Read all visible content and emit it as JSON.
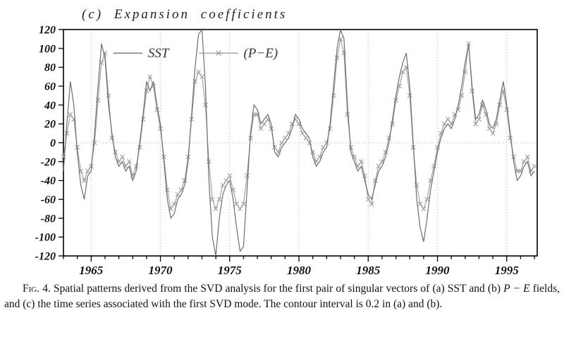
{
  "figure": {
    "title": "(c) Expansion coefficients",
    "caption": {
      "lead": "Fig. 4.",
      "part1": " Spatial patterns derived from the SVD analysis for the first pair of singular vectors of (a) SST and (b) ",
      "part2_italic": "P − E",
      "part3": " fields, and (c) the time series associated with the first SVD mode. The contour interval is 0.2 in (a) and (b)."
    }
  },
  "chart_data": {
    "type": "line",
    "title": "(c) Expansion coefficients",
    "xlabel": "",
    "ylabel": "",
    "xlim": [
      1963,
      1997.2
    ],
    "ylim": [
      -120,
      120
    ],
    "y_tick_step": 20,
    "y_tick_labels": [
      "-120",
      "-100",
      "-80",
      "-60",
      "-40",
      "-20",
      "0",
      "20",
      "40",
      "60",
      "80",
      "100",
      "120"
    ],
    "x_major_ticks": [
      1965,
      1970,
      1975,
      1980,
      1985,
      1990,
      1995
    ],
    "x_minor_tick_step": 1,
    "x_start": 1963.0,
    "x_step": 0.25,
    "grid": "dotted vertical lines at major x ticks, dotted line at y=0",
    "legend_position": "inside-top",
    "frame_color": "#000000",
    "series": [
      {
        "name": "SST",
        "marker": "none",
        "color": "#6e6e6e",
        "values": [
          -30,
          20,
          65,
          40,
          -10,
          -45,
          -60,
          -35,
          -30,
          10,
          60,
          105,
          90,
          40,
          10,
          -15,
          -25,
          -20,
          -30,
          -25,
          -40,
          -30,
          0,
          30,
          65,
          55,
          65,
          40,
          20,
          -20,
          -60,
          -80,
          -75,
          -60,
          -55,
          -45,
          -20,
          30,
          80,
          115,
          120,
          60,
          -40,
          -100,
          -120,
          -80,
          -55,
          -45,
          -40,
          -60,
          -90,
          -115,
          -110,
          -50,
          10,
          40,
          35,
          20,
          25,
          30,
          20,
          -10,
          -15,
          -5,
          0,
          5,
          15,
          30,
          25,
          15,
          10,
          5,
          -15,
          -25,
          -20,
          -10,
          -5,
          20,
          60,
          100,
          125,
          110,
          40,
          -10,
          -20,
          -30,
          -25,
          -40,
          -55,
          -60,
          -45,
          -30,
          -25,
          -15,
          0,
          25,
          50,
          70,
          85,
          95,
          60,
          0,
          -60,
          -90,
          -105,
          -80,
          -50,
          -30,
          -10,
          5,
          15,
          20,
          15,
          25,
          40,
          60,
          85,
          105,
          60,
          25,
          30,
          45,
          35,
          20,
          15,
          25,
          45,
          65,
          40,
          10,
          -20,
          -40,
          -35,
          -25,
          -20,
          -35,
          -30
        ]
      },
      {
        "name": "(P−E)",
        "marker": "x",
        "color": "#9c9c9c",
        "values": [
          -15,
          10,
          30,
          25,
          -5,
          -30,
          -40,
          -30,
          -25,
          0,
          45,
          85,
          95,
          50,
          5,
          -10,
          -20,
          -15,
          -25,
          -20,
          -35,
          -25,
          -5,
          25,
          55,
          70,
          60,
          35,
          15,
          -15,
          -50,
          -70,
          -65,
          -55,
          -50,
          -40,
          -15,
          25,
          65,
          75,
          70,
          40,
          -20,
          -60,
          -70,
          -60,
          -45,
          -40,
          -35,
          -50,
          -65,
          -70,
          -65,
          -35,
          5,
          30,
          30,
          15,
          20,
          25,
          15,
          -5,
          -10,
          0,
          5,
          10,
          20,
          25,
          20,
          10,
          5,
          0,
          -10,
          -20,
          -15,
          -5,
          0,
          15,
          50,
          90,
          110,
          95,
          30,
          -5,
          -15,
          -25,
          -20,
          -35,
          -60,
          -65,
          -40,
          -25,
          -20,
          -10,
          5,
          20,
          45,
          60,
          75,
          80,
          50,
          -5,
          -45,
          -65,
          -70,
          -60,
          -40,
          -25,
          -5,
          10,
          20,
          25,
          20,
          30,
          35,
          50,
          75,
          105,
          55,
          20,
          25,
          40,
          30,
          15,
          10,
          20,
          40,
          55,
          35,
          5,
          -15,
          -30,
          -30,
          -20,
          -15,
          -30,
          -25
        ]
      }
    ]
  }
}
